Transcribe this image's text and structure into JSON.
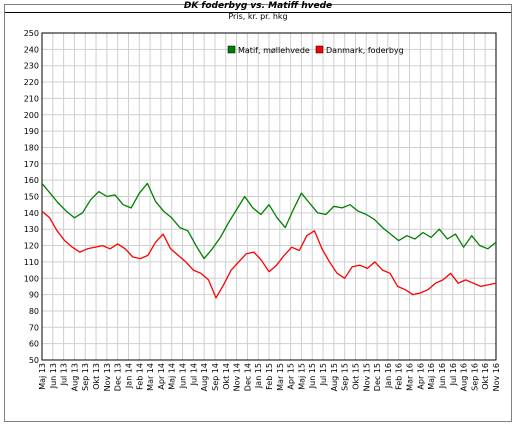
{
  "chart_data": {
    "type": "line",
    "title": "DK foderbyg vs. Matiff hvede",
    "subtitle": "Pris, kr. pr. hkg",
    "ylim": [
      50,
      250
    ],
    "y_ticks": [
      50,
      60,
      70,
      80,
      90,
      100,
      110,
      120,
      130,
      140,
      150,
      160,
      170,
      180,
      190,
      200,
      210,
      220,
      230,
      240,
      250
    ],
    "x_ticks": [
      "Maj 13",
      "Jun 13",
      "Jul 13",
      "Aug 13",
      "Sep 13",
      "Okt 13",
      "Nov 13",
      "Dec 13",
      "Jan 14",
      "Feb 14",
      "Mar 14",
      "Apr 14",
      "Maj 14",
      "Jun 14",
      "Jul 14",
      "Aug 14",
      "Sep 14",
      "Okt 14",
      "Nov 14",
      "Dec 14",
      "Jan 15",
      "Feb 15",
      "Mar 15",
      "Apr 15",
      "Maj 15",
      "Jun 15",
      "Jul 15",
      "Aug 15",
      "Sep 15",
      "Okt 15",
      "Nov 15",
      "Dec 15",
      "Jan 16",
      "Feb 16",
      "Mar 16",
      "Apr 16",
      "Maj 16",
      "Jun 16",
      "Jul 16",
      "Aug 16",
      "Sep 16",
      "Okt 16",
      "Nov 16"
    ],
    "grid": true,
    "legend_position": "top-center",
    "series": [
      {
        "name": "Matif, møllehvede",
        "color": "#008000",
        "values": [
          158,
          152,
          146,
          141,
          137,
          140,
          148,
          153,
          150,
          151,
          145,
          143,
          152,
          158,
          147,
          141,
          137,
          131,
          129,
          120,
          112,
          118,
          125,
          134,
          142,
          150,
          143,
          139,
          145,
          137,
          131,
          142,
          152,
          146,
          140,
          139,
          144,
          143,
          145,
          141,
          139,
          136,
          131,
          127,
          123,
          126,
          124,
          128,
          125,
          130,
          124,
          127,
          119,
          126,
          120,
          118,
          122
        ]
      },
      {
        "name": "Danmark, foderbyg",
        "color": "#ff0000",
        "values": [
          141,
          137,
          129,
          123,
          119,
          116,
          118,
          119,
          120,
          118,
          121,
          118,
          113,
          112,
          114,
          122,
          127,
          118,
          114,
          110,
          105,
          103,
          99,
          88,
          96,
          105,
          110,
          115,
          116,
          111,
          104,
          108,
          114,
          119,
          117,
          126,
          129,
          118,
          110,
          103,
          100,
          107,
          108,
          106,
          110,
          105,
          103,
          95,
          93,
          90,
          91,
          93,
          97,
          99,
          103,
          97,
          99,
          97,
          95,
          96,
          97
        ]
      }
    ]
  }
}
